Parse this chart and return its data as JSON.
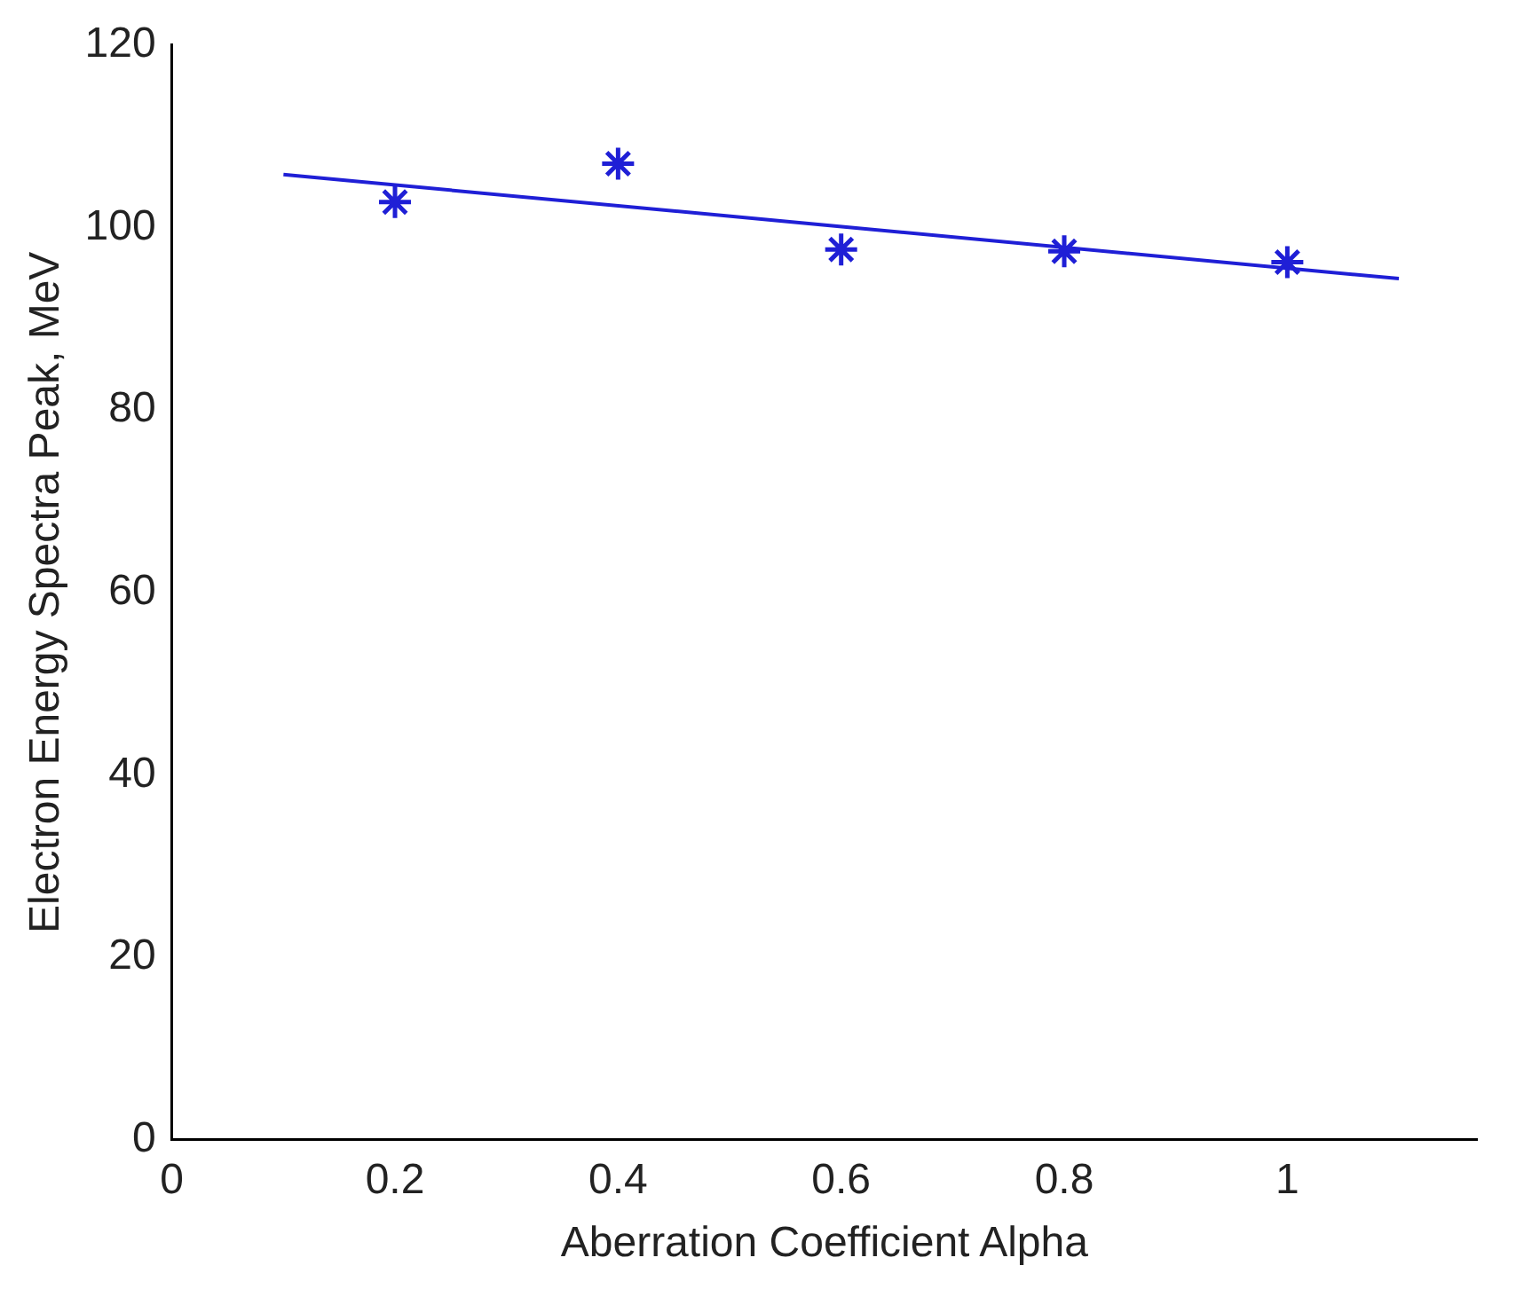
{
  "chart_data": {
    "type": "scatter",
    "xlabel": "Aberration Coefficient Alpha",
    "ylabel": "Electron Energy Spectra Peak, MeV",
    "x": [
      0.2,
      0.4,
      0.6,
      0.8,
      1.0
    ],
    "series": [
      {
        "type": "scatter",
        "color": "#1f1fd6",
        "marker": "cross",
        "values": [
          102.8,
          107,
          97.6,
          97.4,
          96.2
        ]
      },
      {
        "type": "line",
        "color": "#1f1fd6",
        "marker": "none",
        "x": [
          0.1,
          1.1
        ],
        "values": [
          105.8,
          94.4
        ]
      }
    ],
    "xlim": [
      0,
      1.17
    ],
    "xticks": [
      0,
      0.2,
      0.4,
      0.6,
      0.8,
      1
    ],
    "ylim": [
      0,
      120
    ],
    "yticks": [
      0,
      20,
      40,
      60,
      80,
      100,
      120
    ],
    "grid": false,
    "legend": false
  }
}
